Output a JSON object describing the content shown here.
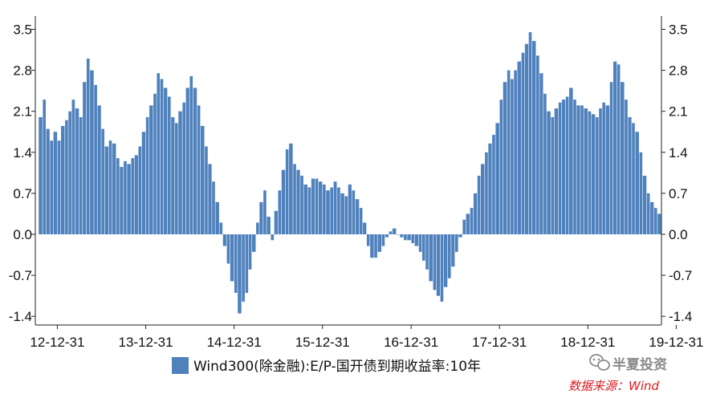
{
  "chart_data": {
    "type": "bar",
    "series": [
      {
        "name": "Wind300(除金融):E/P-国开债到期收益率:10年",
        "color": "#4f81bd",
        "points": [
          [
            "2012-10-15",
            2.0
          ],
          [
            "2012-11-01",
            2.3
          ],
          [
            "2012-11-15",
            1.8
          ],
          [
            "2012-12-01",
            1.6
          ],
          [
            "2012-12-15",
            1.75
          ],
          [
            "2013-01-01",
            1.6
          ],
          [
            "2013-01-15",
            1.85
          ],
          [
            "2013-02-01",
            1.95
          ],
          [
            "2013-02-15",
            2.1
          ],
          [
            "2013-03-01",
            2.3
          ],
          [
            "2013-03-15",
            2.15
          ],
          [
            "2013-04-01",
            2.0
          ],
          [
            "2013-04-15",
            2.6
          ],
          [
            "2013-05-01",
            3.0
          ],
          [
            "2013-05-15",
            2.8
          ],
          [
            "2013-06-01",
            2.55
          ],
          [
            "2013-06-15",
            2.2
          ],
          [
            "2013-07-01",
            1.8
          ],
          [
            "2013-07-15",
            1.5
          ],
          [
            "2013-08-01",
            1.6
          ],
          [
            "2013-08-15",
            1.55
          ],
          [
            "2013-09-01",
            1.3
          ],
          [
            "2013-09-15",
            1.15
          ],
          [
            "2013-10-01",
            1.25
          ],
          [
            "2013-10-15",
            1.2
          ],
          [
            "2013-11-01",
            1.3
          ],
          [
            "2013-11-15",
            1.35
          ],
          [
            "2013-12-01",
            1.5
          ],
          [
            "2013-12-15",
            1.75
          ],
          [
            "2014-01-01",
            2.0
          ],
          [
            "2014-01-15",
            2.2
          ],
          [
            "2014-02-01",
            2.4
          ],
          [
            "2014-02-15",
            2.75
          ],
          [
            "2014-03-01",
            2.65
          ],
          [
            "2014-03-15",
            2.5
          ],
          [
            "2014-04-01",
            2.35
          ],
          [
            "2014-04-15",
            2.0
          ],
          [
            "2014-05-01",
            1.9
          ],
          [
            "2014-05-15",
            2.1
          ],
          [
            "2014-06-01",
            2.25
          ],
          [
            "2014-06-15",
            2.5
          ],
          [
            "2014-07-01",
            2.7
          ],
          [
            "2014-07-15",
            2.5
          ],
          [
            "2014-08-01",
            2.2
          ],
          [
            "2014-08-15",
            1.85
          ],
          [
            "2014-09-01",
            1.5
          ],
          [
            "2014-09-15",
            1.2
          ],
          [
            "2014-10-01",
            0.9
          ],
          [
            "2014-10-15",
            0.55
          ],
          [
            "2014-11-01",
            0.2
          ],
          [
            "2014-11-15",
            -0.2
          ],
          [
            "2014-12-01",
            -0.5
          ],
          [
            "2014-12-15",
            -0.8
          ],
          [
            "2015-01-01",
            -1.0
          ],
          [
            "2015-01-15",
            -1.35
          ],
          [
            "2015-02-01",
            -1.15
          ],
          [
            "2015-02-15",
            -1.0
          ],
          [
            "2015-03-01",
            -0.6
          ],
          [
            "2015-03-15",
            -0.3
          ],
          [
            "2015-04-01",
            0.2
          ],
          [
            "2015-04-15",
            0.55
          ],
          [
            "2015-05-01",
            0.75
          ],
          [
            "2015-05-15",
            0.3
          ],
          [
            "2015-06-01",
            -0.1
          ],
          [
            "2015-06-15",
            0.4
          ],
          [
            "2015-07-01",
            0.75
          ],
          [
            "2015-07-15",
            1.1
          ],
          [
            "2015-08-01",
            1.45
          ],
          [
            "2015-08-15",
            1.55
          ],
          [
            "2015-09-01",
            1.2
          ],
          [
            "2015-09-15",
            1.1
          ],
          [
            "2015-10-01",
            1.0
          ],
          [
            "2015-10-15",
            0.85
          ],
          [
            "2015-11-01",
            0.8
          ],
          [
            "2015-11-15",
            0.95
          ],
          [
            "2015-12-01",
            0.95
          ],
          [
            "2015-12-15",
            0.9
          ],
          [
            "2016-01-01",
            0.85
          ],
          [
            "2016-01-15",
            0.75
          ],
          [
            "2016-02-01",
            0.8
          ],
          [
            "2016-02-15",
            0.9
          ],
          [
            "2016-03-01",
            0.8
          ],
          [
            "2016-03-15",
            0.7
          ],
          [
            "2016-04-01",
            0.65
          ],
          [
            "2016-04-15",
            0.85
          ],
          [
            "2016-05-01",
            0.75
          ],
          [
            "2016-05-15",
            0.6
          ],
          [
            "2016-06-01",
            0.45
          ],
          [
            "2016-06-15",
            0.2
          ],
          [
            "2016-07-01",
            -0.2
          ],
          [
            "2016-07-15",
            -0.4
          ],
          [
            "2016-08-01",
            -0.4
          ],
          [
            "2016-08-15",
            -0.3
          ],
          [
            "2016-09-01",
            -0.2
          ],
          [
            "2016-09-15",
            -0.05
          ],
          [
            "2016-10-01",
            0.05
          ],
          [
            "2016-10-15",
            0.1
          ],
          [
            "2016-11-01",
            0.0
          ],
          [
            "2016-11-15",
            -0.05
          ],
          [
            "2016-12-01",
            -0.1
          ],
          [
            "2016-12-15",
            -0.1
          ],
          [
            "2017-01-01",
            -0.15
          ],
          [
            "2017-01-15",
            -0.2
          ],
          [
            "2017-02-01",
            -0.3
          ],
          [
            "2017-02-15",
            -0.45
          ],
          [
            "2017-03-01",
            -0.6
          ],
          [
            "2017-03-15",
            -0.8
          ],
          [
            "2017-04-01",
            -0.95
          ],
          [
            "2017-04-15",
            -1.05
          ],
          [
            "2017-05-01",
            -1.15
          ],
          [
            "2017-05-15",
            -0.9
          ],
          [
            "2017-06-01",
            -0.75
          ],
          [
            "2017-06-15",
            -0.55
          ],
          [
            "2017-07-01",
            -0.3
          ],
          [
            "2017-07-15",
            -0.05
          ],
          [
            "2017-08-01",
            0.25
          ],
          [
            "2017-08-15",
            0.35
          ],
          [
            "2017-09-01",
            0.45
          ],
          [
            "2017-09-15",
            0.7
          ],
          [
            "2017-10-01",
            1.0
          ],
          [
            "2017-10-15",
            1.2
          ],
          [
            "2017-11-01",
            1.4
          ],
          [
            "2017-11-15",
            1.55
          ],
          [
            "2017-12-01",
            1.7
          ],
          [
            "2017-12-15",
            1.9
          ],
          [
            "2018-01-01",
            2.3
          ],
          [
            "2018-01-15",
            2.6
          ],
          [
            "2018-02-01",
            2.8
          ],
          [
            "2018-02-15",
            2.65
          ],
          [
            "2018-03-01",
            2.8
          ],
          [
            "2018-03-15",
            2.95
          ],
          [
            "2018-04-01",
            3.1
          ],
          [
            "2018-04-15",
            3.25
          ],
          [
            "2018-05-01",
            3.45
          ],
          [
            "2018-05-15",
            3.3
          ],
          [
            "2018-06-01",
            3.05
          ],
          [
            "2018-06-15",
            2.75
          ],
          [
            "2018-07-01",
            2.4
          ],
          [
            "2018-07-15",
            2.1
          ],
          [
            "2018-08-01",
            2.0
          ],
          [
            "2018-08-15",
            2.15
          ],
          [
            "2018-09-01",
            2.25
          ],
          [
            "2018-09-15",
            2.3
          ],
          [
            "2018-10-01",
            2.35
          ],
          [
            "2018-10-15",
            2.5
          ],
          [
            "2018-11-01",
            2.3
          ],
          [
            "2018-11-15",
            2.2
          ],
          [
            "2018-12-01",
            2.2
          ],
          [
            "2018-12-15",
            2.15
          ],
          [
            "2019-01-01",
            2.1
          ],
          [
            "2019-01-15",
            2.05
          ],
          [
            "2019-02-01",
            2.0
          ],
          [
            "2019-02-15",
            2.15
          ],
          [
            "2019-03-01",
            2.25
          ],
          [
            "2019-03-15",
            2.2
          ],
          [
            "2019-04-01",
            2.6
          ],
          [
            "2019-04-15",
            2.95
          ],
          [
            "2019-05-01",
            2.9
          ],
          [
            "2019-05-15",
            2.6
          ],
          [
            "2019-06-01",
            2.3
          ],
          [
            "2019-06-15",
            2.0
          ],
          [
            "2019-07-01",
            1.9
          ],
          [
            "2019-07-15",
            1.75
          ],
          [
            "2019-08-01",
            1.4
          ],
          [
            "2019-08-15",
            1.0
          ],
          [
            "2019-09-01",
            0.7
          ],
          [
            "2019-09-15",
            0.55
          ],
          [
            "2019-10-01",
            0.45
          ],
          [
            "2019-10-15",
            0.35
          ]
        ]
      }
    ],
    "x_ticks": [
      "12-12-31",
      "13-12-31",
      "14-12-31",
      "15-12-31",
      "16-12-31",
      "17-12-31",
      "18-12-31",
      "19-12-31"
    ],
    "x_range": [
      "2012-10-01",
      "2019-10-31"
    ],
    "y_ticks": [
      3.5,
      2.8,
      2.1,
      1.4,
      0.7,
      0.0,
      -0.7,
      -1.4
    ],
    "y_tick_labels": [
      "3.5",
      "2.8",
      "2.1",
      "1.4",
      "0.7",
      "0.0",
      "-0.7",
      "-1.4"
    ],
    "ylim": [
      -1.4,
      3.5
    ],
    "grid": false,
    "legend_position": "bottom-center"
  },
  "watermark": {
    "icon": "wechat-icon",
    "text": "半夏投资"
  },
  "source": {
    "text": "数据来源：Wind"
  }
}
